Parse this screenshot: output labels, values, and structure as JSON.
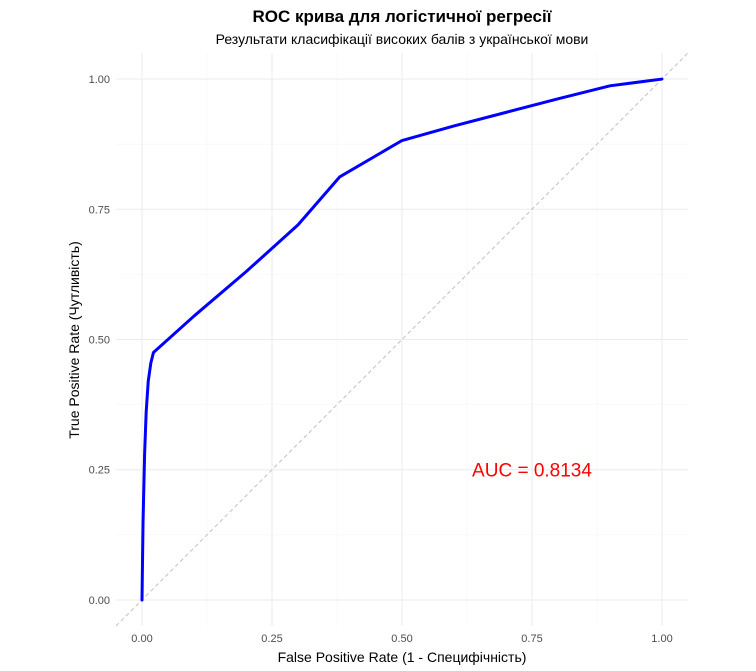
{
  "chart_data": {
    "type": "line",
    "title": "ROC крива для логістичної регресії",
    "subtitle": "Результати класифікації високих балів з української мови",
    "xlabel": "False Positive Rate (1 - Специфічність)",
    "ylabel": "True Positive Rate (Чутливість)",
    "xlim": [
      -0.05,
      1.05
    ],
    "ylim": [
      -0.05,
      1.05
    ],
    "x_ticks": [
      0,
      0.25,
      0.5,
      0.75,
      1
    ],
    "y_ticks": [
      0,
      0.25,
      0.5,
      0.75,
      1
    ],
    "x_tick_labels": [
      "0.00",
      "0.25",
      "0.50",
      "0.75",
      "1.00"
    ],
    "y_tick_labels": [
      "0.00",
      "0.25",
      "0.50",
      "0.75",
      "1.00"
    ],
    "grid": true,
    "series": [
      {
        "color": "#0000ff",
        "x": [
          0.0,
          0.002,
          0.005,
          0.008,
          0.012,
          0.017,
          0.022,
          0.1,
          0.2,
          0.3,
          0.38,
          0.5,
          0.6,
          0.7,
          0.8,
          0.9,
          1.0
        ],
        "y": [
          0.0,
          0.15,
          0.28,
          0.36,
          0.42,
          0.455,
          0.475,
          0.545,
          0.63,
          0.72,
          0.812,
          0.882,
          0.91,
          0.936,
          0.962,
          0.987,
          1.0
        ]
      }
    ],
    "reference_line": {
      "x": [
        -0.05,
        1.05
      ],
      "y": [
        -0.05,
        1.05
      ],
      "color": "#c0c0c0",
      "style": "dashed"
    },
    "annotations": [
      {
        "text": "AUC = 0.8134",
        "x": 0.75,
        "y": 0.25,
        "color": "#ff0000"
      }
    ]
  }
}
